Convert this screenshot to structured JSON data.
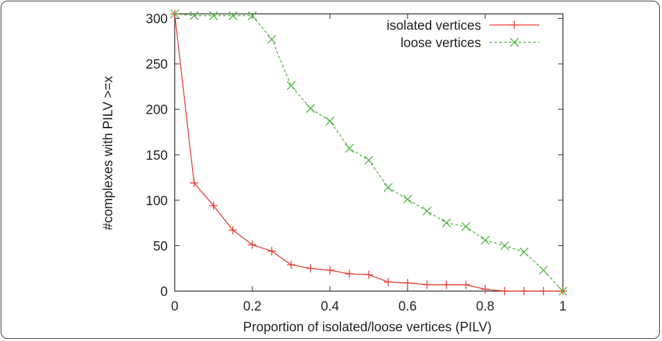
{
  "chart_data": {
    "type": "line",
    "xlabel": "Proportion of isolated/loose vertices (PILV)",
    "ylabel": "#complexes with PILV >=x",
    "xlim": [
      0,
      1
    ],
    "ylim": [
      0,
      305
    ],
    "xticks": [
      0,
      0.2,
      0.4,
      0.6,
      0.8,
      1
    ],
    "xtick_labels": [
      "0",
      "0.2",
      "0.4",
      "0.6",
      "0.8",
      "1"
    ],
    "yticks": [
      0,
      50,
      100,
      150,
      200,
      250,
      300
    ],
    "ytick_labels": [
      "0",
      "50",
      "100",
      "150",
      "200",
      "250",
      "300"
    ],
    "grid": false,
    "legend_position": "top-right",
    "x": [
      0,
      0.05,
      0.1,
      0.15,
      0.2,
      0.25,
      0.3,
      0.35,
      0.4,
      0.45,
      0.5,
      0.55,
      0.6,
      0.65,
      0.7,
      0.75,
      0.8,
      0.85,
      0.9,
      0.95,
      1
    ],
    "series": [
      {
        "name": "isolated vertices",
        "color": "#e8362a",
        "marker": "plus",
        "line_style": "solid",
        "values": [
          305,
          119,
          94,
          67,
          51,
          44,
          29,
          25,
          23,
          19,
          18,
          10,
          9,
          7,
          7,
          7,
          2,
          0,
          0,
          0,
          0
        ]
      },
      {
        "name": "loose vertices",
        "color": "#4cb33d",
        "marker": "x",
        "line_style": "dashed",
        "values": [
          305,
          303,
          303,
          303,
          303,
          277,
          226,
          201,
          187,
          157,
          144,
          114,
          101,
          88,
          75,
          71,
          56,
          50,
          43,
          23,
          0
        ]
      }
    ]
  }
}
